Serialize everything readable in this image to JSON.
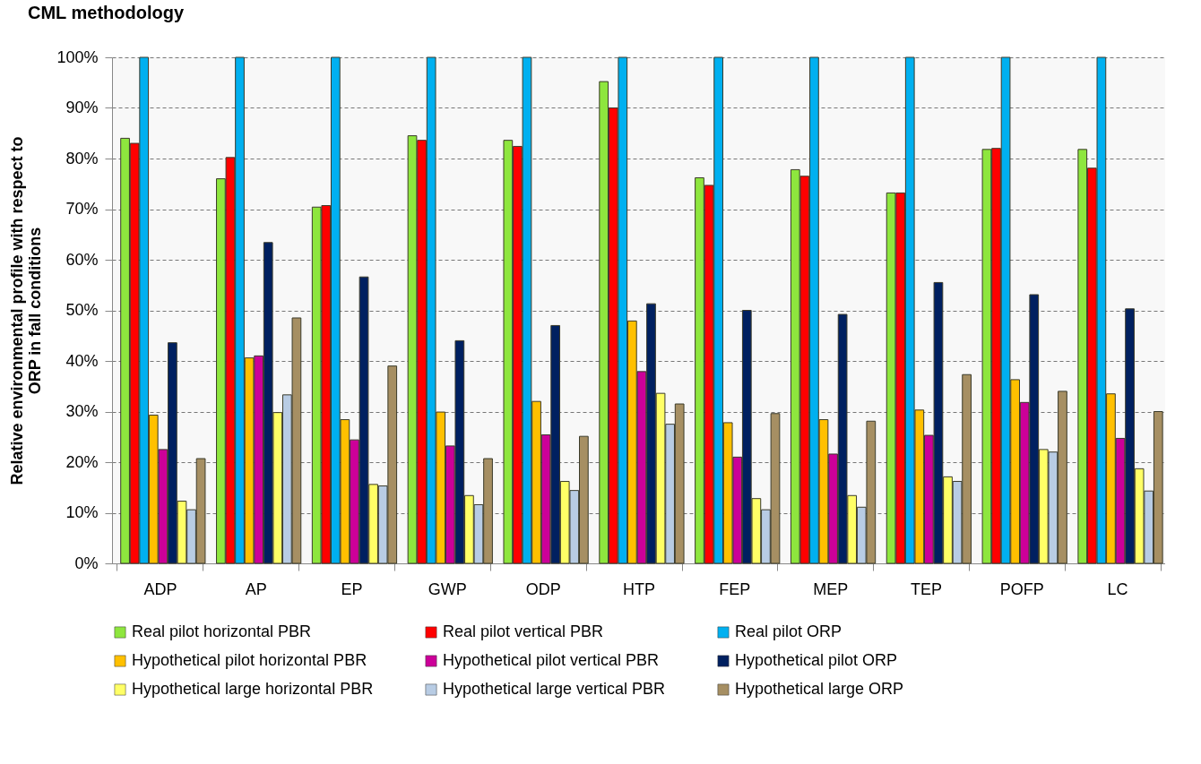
{
  "chart_data": {
    "type": "bar",
    "title": "CML methodology",
    "ylabel": "Relative environmental profile with respect to\nORP in fall conditions",
    "categories": [
      "ADP",
      "AP",
      "EP",
      "GWP",
      "ODP",
      "HTP",
      "FEP",
      "MEP",
      "TEP",
      "POFP",
      "LC"
    ],
    "series": [
      {
        "name": "Real pilot horizontal PBR",
        "color": "#8ee63e",
        "values": [
          84,
          76,
          70.4,
          84.5,
          83.6,
          95.2,
          76.2,
          77.8,
          73.2,
          81.8,
          81.8
        ]
      },
      {
        "name": "Real pilot vertical PBR",
        "color": "#ff0000",
        "values": [
          83,
          80.2,
          70.7,
          83.6,
          82.4,
          90,
          74.7,
          76.5,
          73.2,
          82,
          78.1
        ]
      },
      {
        "name": "Real pilot ORP",
        "color": "#00b0f0",
        "values": [
          100,
          100,
          100,
          100,
          100,
          100,
          100,
          100,
          100,
          100,
          100
        ]
      },
      {
        "name": "Hypothetical pilot horizontal PBR",
        "color": "#ffc000",
        "values": [
          29.3,
          40.6,
          28.4,
          29.9,
          32,
          47.9,
          27.8,
          28.4,
          30.3,
          36.3,
          33.5
        ]
      },
      {
        "name": "Hypothetical pilot vertical PBR",
        "color": "#cc0099",
        "values": [
          22.5,
          41,
          24.4,
          23.2,
          25.4,
          37.9,
          21,
          21.6,
          25.3,
          31.8,
          24.7
        ]
      },
      {
        "name": "Hypothetical pilot ORP",
        "color": "#002060",
        "values": [
          43.6,
          63.4,
          56.6,
          44,
          47,
          51.3,
          50,
          49.2,
          55.5,
          53.1,
          50.3
        ]
      },
      {
        "name": "Hypothetical large horizontal PBR",
        "color": "#ffff66",
        "values": [
          12.3,
          29.8,
          15.6,
          13.4,
          16.2,
          33.6,
          12.8,
          13.4,
          17.1,
          22.5,
          18.7
        ]
      },
      {
        "name": "Hypothetical large vertical PBR",
        "color": "#b8cce4",
        "values": [
          10.6,
          33.3,
          15.3,
          11.6,
          14.4,
          27.5,
          10.6,
          11.1,
          16.2,
          22,
          14.3
        ]
      },
      {
        "name": "Hypothetical large ORP",
        "color": "#a68f63",
        "values": [
          20.7,
          48.5,
          39,
          20.7,
          25.1,
          31.5,
          29.6,
          28.1,
          37.3,
          34,
          30
        ]
      }
    ],
    "ylim": [
      0,
      100
    ],
    "yticks": [
      {
        "value": 0,
        "label": "0%"
      },
      {
        "value": 10,
        "label": "10%"
      },
      {
        "value": 20,
        "label": "20%"
      },
      {
        "value": 30,
        "label": "30%"
      },
      {
        "value": 40,
        "label": "40%"
      },
      {
        "value": 50,
        "label": "50%"
      },
      {
        "value": 60,
        "label": "60%"
      },
      {
        "value": 70,
        "label": "70%"
      },
      {
        "value": 80,
        "label": "80%"
      },
      {
        "value": 90,
        "label": "90%"
      },
      {
        "value": 100,
        "label": "100%"
      }
    ],
    "grid": "y",
    "legend": "bottom"
  }
}
